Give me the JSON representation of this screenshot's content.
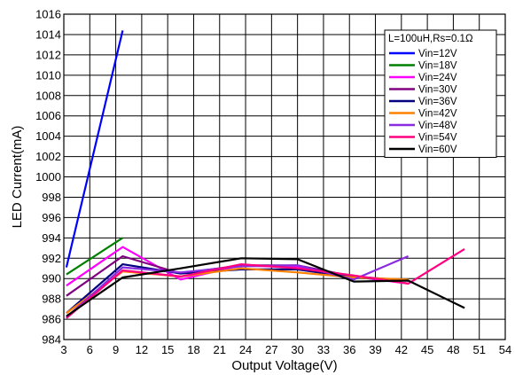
{
  "chart_data": {
    "type": "line",
    "title": "",
    "xlabel": "Output Voltage(V)",
    "ylabel": "LED Current(mA)",
    "xlim": [
      3,
      54
    ],
    "ylim": [
      984,
      1016
    ],
    "x_ticks": [
      3,
      6,
      9,
      12,
      15,
      18,
      21,
      24,
      27,
      30,
      33,
      36,
      39,
      42,
      45,
      48,
      51,
      54
    ],
    "y_ticks": [
      984,
      986,
      988,
      990,
      992,
      994,
      996,
      998,
      1000,
      1002,
      1004,
      1006,
      1008,
      1010,
      1012,
      1014,
      1016
    ],
    "grid": true,
    "legend_title": "L=100uH,Rs=0.1Ω",
    "legend_position": "top-right",
    "series": [
      {
        "name": "Vin=12V",
        "color": "#0000ff",
        "points": [
          [
            3.3,
            991.1
          ],
          [
            9.8,
            1014.4
          ]
        ]
      },
      {
        "name": "Vin=18V",
        "color": "#008000",
        "points": [
          [
            3.3,
            990.4
          ],
          [
            9.8,
            994.0
          ]
        ]
      },
      {
        "name": "Vin=24V",
        "color": "#ff00ff",
        "points": [
          [
            3.3,
            989.3
          ],
          [
            9.8,
            993.1
          ],
          [
            16.5,
            989.9
          ],
          [
            23.5,
            991.3
          ],
          [
            30.0,
            991.1
          ],
          [
            36.5,
            990.2
          ],
          [
            42.8,
            989.5
          ]
        ]
      },
      {
        "name": "Vin=30V",
        "color": "#800080",
        "points": [
          [
            3.3,
            988.3
          ],
          [
            9.8,
            992.2
          ],
          [
            16.5,
            990.5
          ],
          [
            23.5,
            991.3
          ],
          [
            30.0,
            991.3
          ],
          [
            36.5,
            990.2
          ],
          [
            42.8,
            989.8
          ]
        ]
      },
      {
        "name": "Vin=36V",
        "color": "#000080",
        "points": [
          [
            3.3,
            986.6
          ],
          [
            9.8,
            991.4
          ],
          [
            16.5,
            990.5
          ],
          [
            23.5,
            990.9
          ],
          [
            30.0,
            990.9
          ],
          [
            36.5,
            990.1
          ],
          [
            42.8,
            989.8
          ]
        ]
      },
      {
        "name": "Vin=42V",
        "color": "#ff8000",
        "points": [
          [
            3.3,
            986.6
          ],
          [
            9.8,
            990.7
          ],
          [
            16.5,
            990.2
          ],
          [
            23.5,
            991.0
          ],
          [
            30.0,
            990.6
          ],
          [
            36.5,
            990.1
          ],
          [
            42.8,
            989.9
          ]
        ]
      },
      {
        "name": "Vin=48V",
        "color": "#8a2be2",
        "points": [
          [
            3.3,
            986.2
          ],
          [
            9.8,
            991.1
          ],
          [
            16.5,
            990.6
          ],
          [
            23.5,
            991.2
          ],
          [
            30.0,
            991.3
          ],
          [
            36.5,
            989.9
          ],
          [
            42.8,
            992.2
          ]
        ]
      },
      {
        "name": "Vin=54V",
        "color": "#ff0080",
        "points": [
          [
            3.3,
            986.1
          ],
          [
            9.8,
            990.8
          ],
          [
            16.5,
            990.2
          ],
          [
            23.5,
            991.4
          ],
          [
            30.0,
            991.0
          ],
          [
            36.5,
            990.3
          ],
          [
            42.8,
            989.5
          ],
          [
            49.3,
            992.9
          ]
        ]
      },
      {
        "name": "Vin=60V",
        "color": "#000000",
        "points": [
          [
            3.3,
            986.3
          ],
          [
            9.8,
            990.1
          ],
          [
            16.5,
            991.0
          ],
          [
            23.5,
            992.0
          ],
          [
            30.0,
            991.9
          ],
          [
            36.5,
            989.7
          ],
          [
            42.8,
            989.8
          ],
          [
            49.3,
            987.1
          ]
        ]
      }
    ]
  }
}
